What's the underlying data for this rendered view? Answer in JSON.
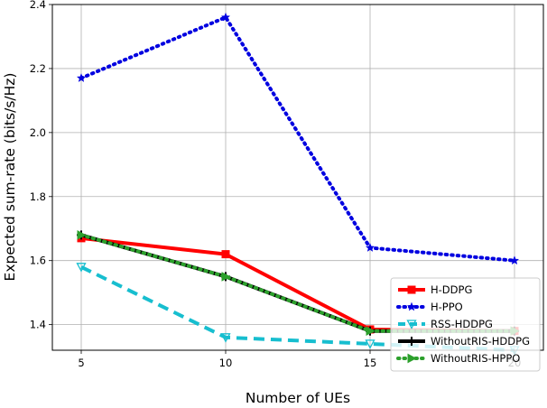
{
  "chart_data": {
    "type": "line",
    "xlabel": "Number of UEs",
    "ylabel": "Expected sum-rate (bits/s/Hz)",
    "x": [
      5,
      10,
      15,
      20
    ],
    "xlim": [
      4,
      21
    ],
    "ylim": [
      1.32,
      2.4
    ],
    "xticks": [
      5,
      10,
      15,
      20
    ],
    "yticks": [
      1.4,
      1.6,
      1.8,
      2.0,
      2.2,
      2.4
    ],
    "ytick_labels": [
      "1.4",
      "1.6",
      "1.8",
      "2.0",
      "2.2",
      "2.4"
    ],
    "grid": true,
    "legend_position": "bottom-right",
    "series": [
      {
        "name": "H-DDPG",
        "values": [
          1.67,
          1.62,
          1.385,
          1.38
        ],
        "color": "#ff0000",
        "dash": "",
        "marker": "square"
      },
      {
        "name": "H-PPO",
        "values": [
          2.17,
          2.36,
          1.64,
          1.6
        ],
        "color": "#0000e0",
        "dash": "dotted",
        "marker": "star"
      },
      {
        "name": "RSS-HDDPG",
        "values": [
          1.58,
          1.36,
          1.34,
          1.32
        ],
        "color": "#17becf",
        "dash": "dashed",
        "marker": "triangle-down"
      },
      {
        "name": "WithoutRIS-HDDPG",
        "values": [
          1.68,
          1.55,
          1.38,
          1.38
        ],
        "color": "#000000",
        "dash": "",
        "marker": "plus"
      },
      {
        "name": "WithoutRIS-HPPO",
        "values": [
          1.68,
          1.55,
          1.38,
          1.38
        ],
        "color": "#2ca02c",
        "dash": "dotted",
        "marker": "triangle-right"
      }
    ]
  }
}
